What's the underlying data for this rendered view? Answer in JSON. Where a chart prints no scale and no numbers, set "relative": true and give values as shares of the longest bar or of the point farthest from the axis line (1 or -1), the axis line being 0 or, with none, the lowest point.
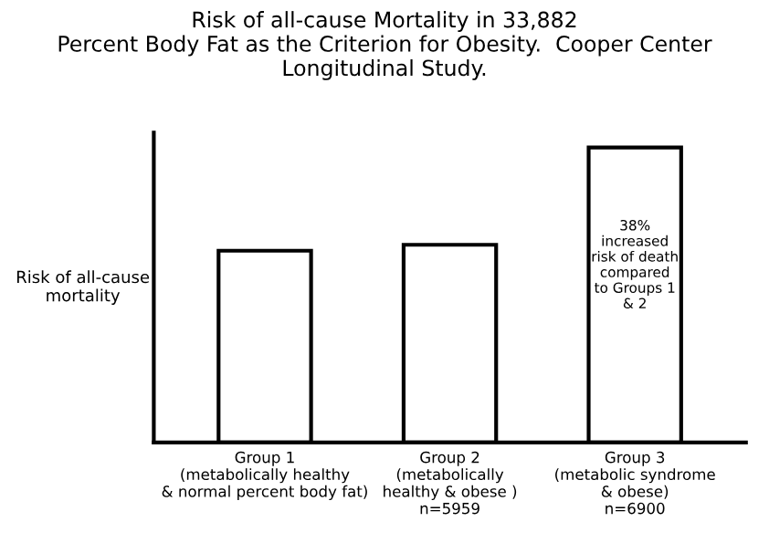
{
  "chart_data": {
    "type": "bar",
    "title": "Risk of all-cause Mortality in 33,882\nPercent Body Fat as the Criterion for Obesity.  Cooper Center\nLongitudinal Study.",
    "ylabel": "Risk of all-cause\nmortality",
    "categories": [
      "Group 1\n(metabolically healthy\n& normal percent body fat)",
      "Group 2\n(metabolically\nhealthy & obese )\nn=5959",
      "Group 3\n(metabolic syndrome\n& obese)\nn=6900"
    ],
    "values": [
      0.65,
      0.67,
      1
    ],
    "color": "#ffffff",
    "relative": true,
    "tick_labels": "x",
    "grid": false,
    "legend": false,
    "annotations": [
      "38%\nincreased\nrisk of death\ncompared\nto Groups 1\n& 2"
    ]
  }
}
